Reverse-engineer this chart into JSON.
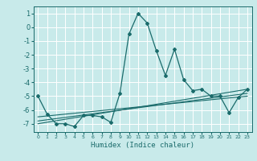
{
  "xlabel": "Humidex (Indice chaleur)",
  "background_color": "#c8eaea",
  "grid_color": "#ffffff",
  "line_color": "#1a6b6b",
  "xlim": [
    -0.5,
    23.5
  ],
  "ylim": [
    -7.6,
    1.5
  ],
  "xticks": [
    0,
    1,
    2,
    3,
    4,
    5,
    6,
    7,
    8,
    9,
    10,
    11,
    12,
    13,
    14,
    15,
    16,
    17,
    18,
    19,
    20,
    21,
    22,
    23
  ],
  "yticks": [
    1,
    0,
    -1,
    -2,
    -3,
    -4,
    -5,
    -6,
    -7
  ],
  "main_line_x": [
    0,
    1,
    2,
    3,
    4,
    5,
    6,
    7,
    8,
    9,
    10,
    11,
    12,
    13,
    14,
    15,
    16,
    17,
    18,
    19,
    20,
    21,
    22,
    23
  ],
  "main_line_y": [
    -5.0,
    -6.3,
    -7.0,
    -7.0,
    -7.2,
    -6.4,
    -6.4,
    -6.5,
    -6.9,
    -4.8,
    -0.5,
    1.0,
    0.3,
    -1.7,
    -3.5,
    -1.6,
    -3.8,
    -4.6,
    -4.5,
    -5.0,
    -5.0,
    -6.2,
    -5.1,
    -4.5
  ],
  "line2_x": [
    0,
    23
  ],
  "line2_y": [
    -6.5,
    -5.0
  ],
  "line3_x": [
    0,
    23
  ],
  "line3_y": [
    -6.8,
    -4.8
  ],
  "line4_x": [
    0,
    23
  ],
  "line4_y": [
    -7.0,
    -4.5
  ]
}
